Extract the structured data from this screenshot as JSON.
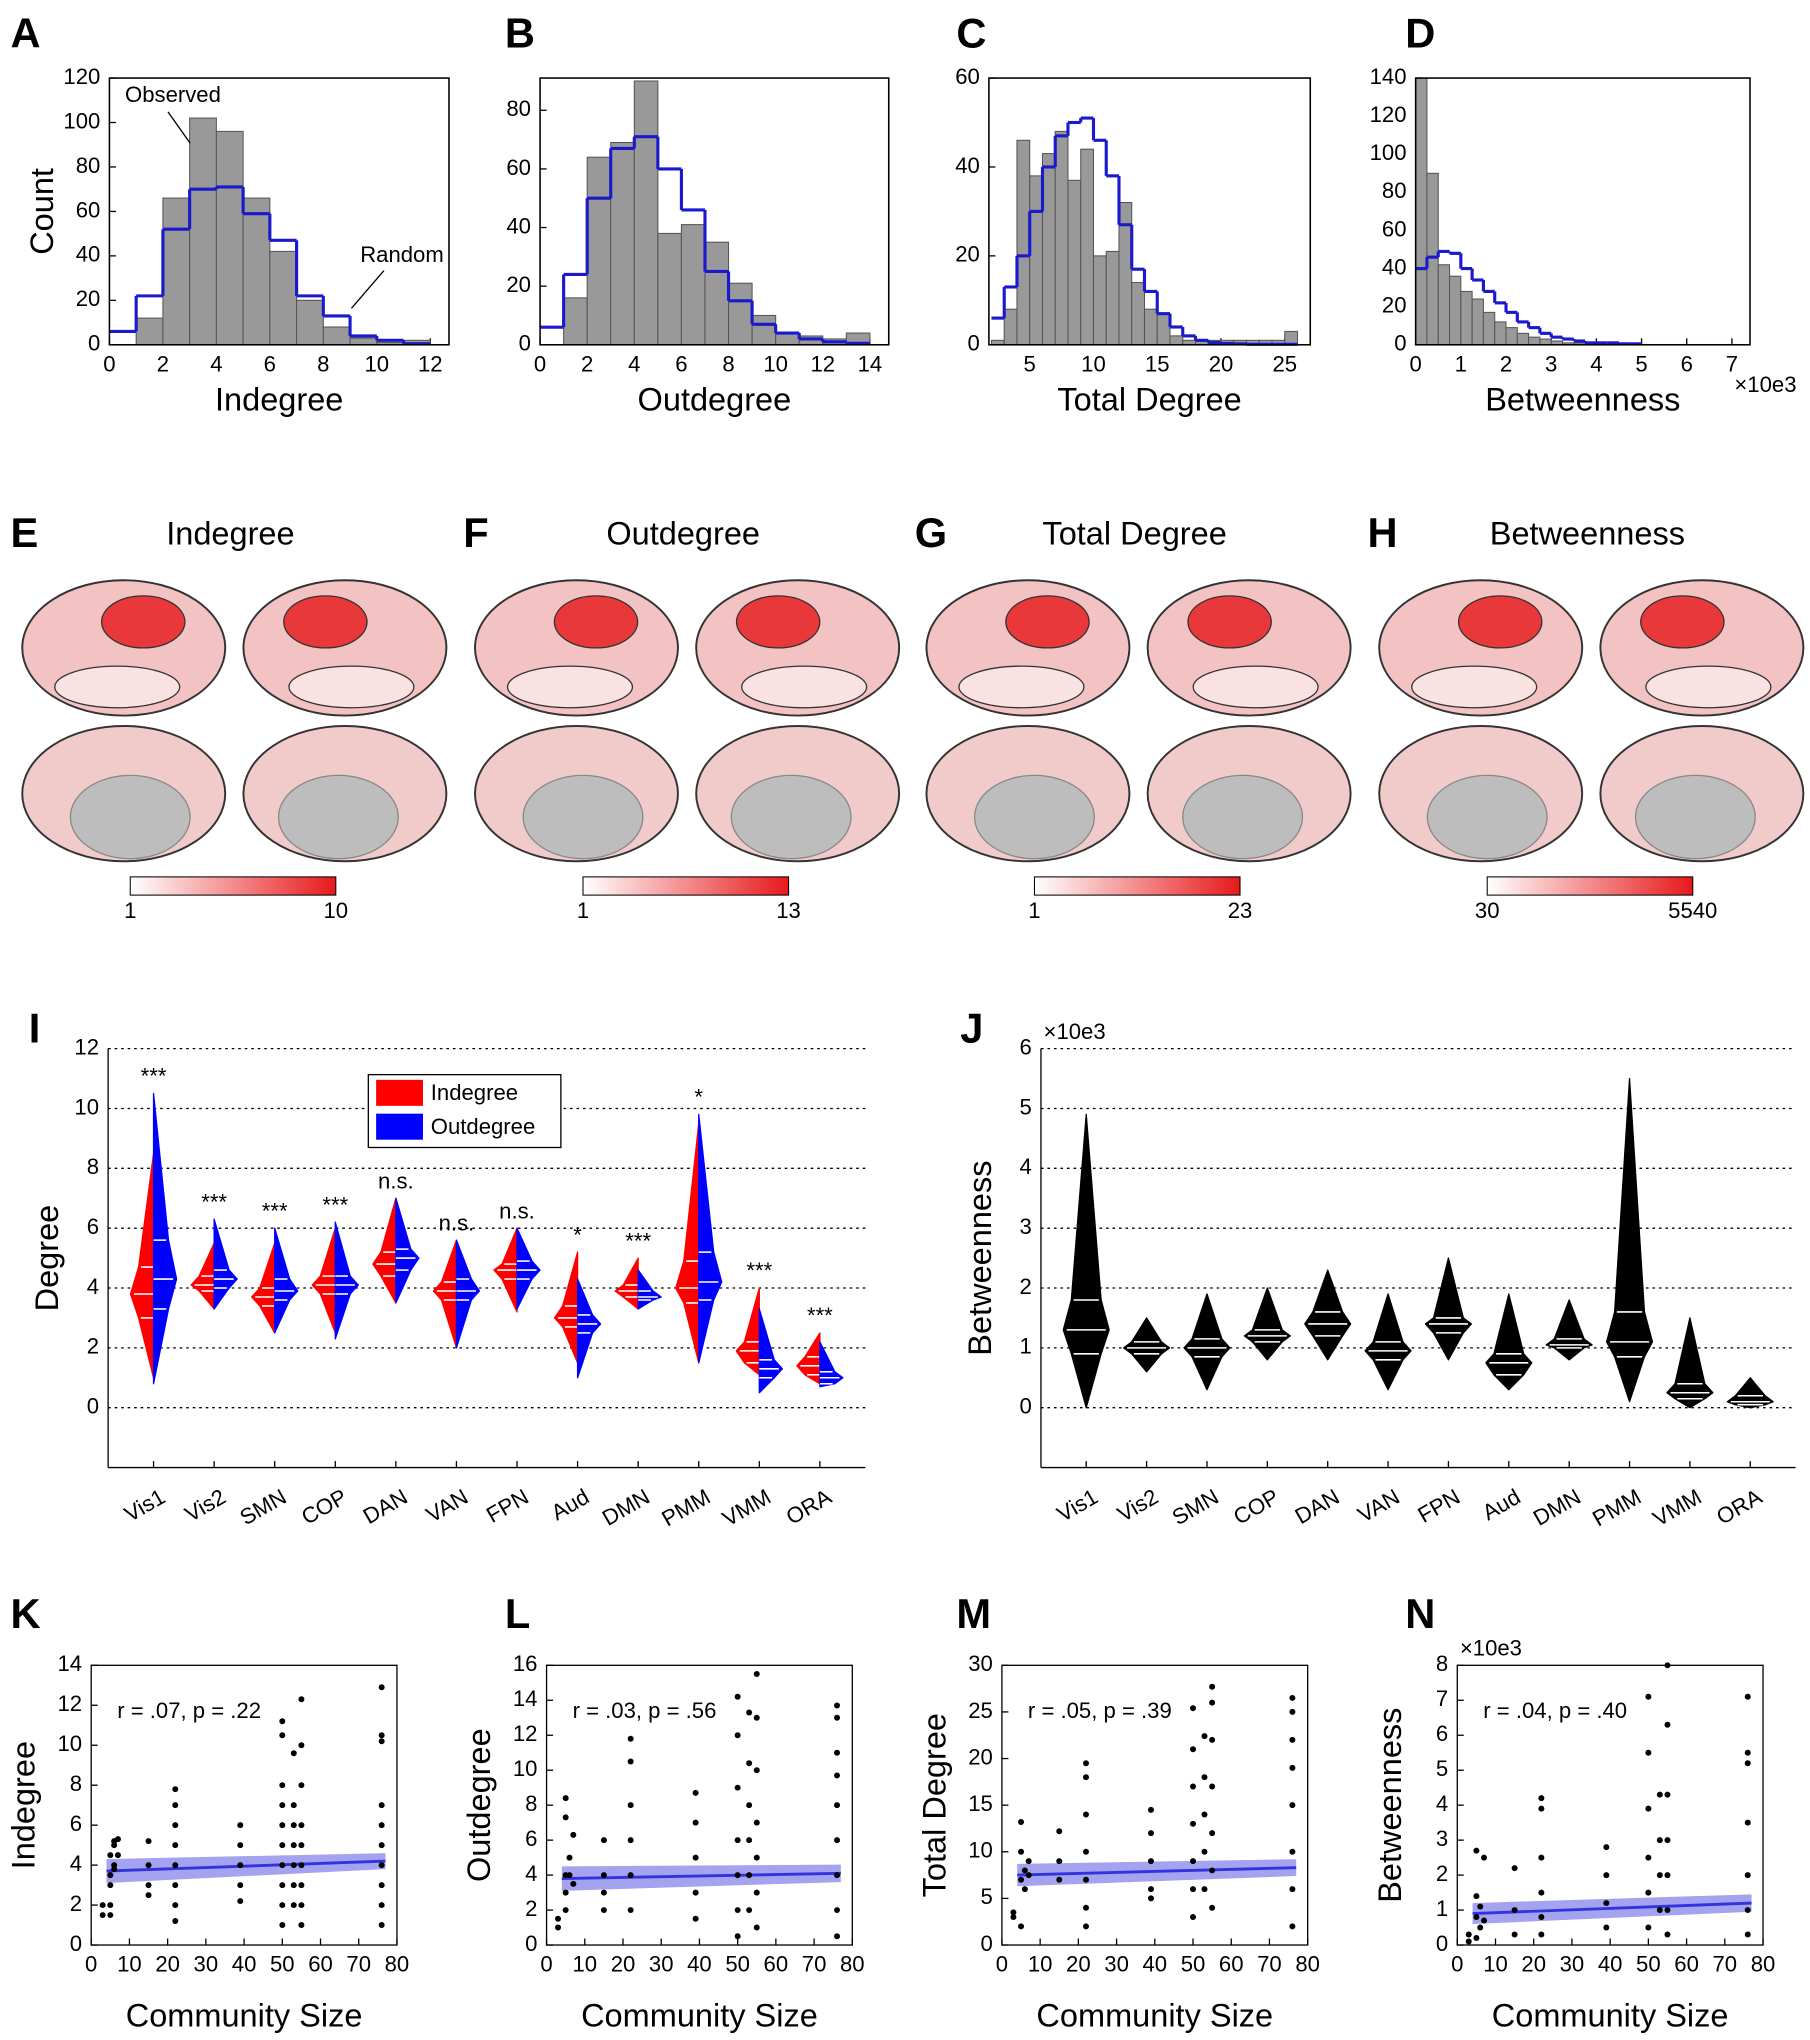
{
  "chart_data": [
    {
      "type": "histogram",
      "panel": "A",
      "xlabel": "Indegree",
      "ylabel": "Count",
      "annotations": [
        "Observed",
        "Random"
      ],
      "bins": [
        0,
        1,
        2,
        3,
        4,
        5,
        6,
        7,
        8,
        9,
        10,
        11,
        12
      ],
      "values": [
        0,
        12,
        66,
        102,
        96,
        66,
        42,
        20,
        8,
        3,
        1,
        2
      ],
      "random_values": [
        6,
        22,
        52,
        70,
        71,
        59,
        47,
        22,
        13,
        4,
        2,
        0.5
      ],
      "color": "#999999",
      "random_color": "#1a1acc",
      "xlim": [
        0,
        12.7
      ],
      "xticks": [
        0,
        2,
        4,
        6,
        8,
        10,
        12
      ],
      "ylim": [
        0,
        120
      ],
      "yticks": [
        0,
        20,
        40,
        60,
        80,
        100,
        120
      ]
    },
    {
      "type": "histogram",
      "panel": "B",
      "xlabel": "Outdegree",
      "bins": [
        0,
        1,
        2,
        3,
        4,
        5,
        6,
        7,
        8,
        9,
        10,
        11,
        12,
        13,
        14
      ],
      "values": [
        0,
        16,
        64,
        69,
        90,
        38,
        41,
        35,
        21,
        10,
        4,
        3,
        2,
        4
      ],
      "random_values": [
        6,
        24,
        50,
        67,
        71,
        60,
        46,
        25,
        15,
        7,
        4,
        2,
        1,
        0.5
      ],
      "color": "#999999",
      "random_color": "#1a1acc",
      "xlim": [
        0,
        14.8
      ],
      "xticks": [
        0,
        2,
        4,
        6,
        8,
        10,
        12,
        14
      ],
      "ylim": [
        0,
        91
      ],
      "yticks": [
        0,
        20,
        40,
        60,
        80
      ]
    },
    {
      "type": "histogram",
      "panel": "C",
      "xlabel": "Total Degree",
      "bins": [
        2,
        3,
        4,
        5,
        6,
        7,
        8,
        9,
        10,
        11,
        12,
        13,
        14,
        15,
        16,
        17,
        18,
        19,
        20,
        21,
        22,
        23,
        24,
        25,
        26
      ],
      "values": [
        1,
        8,
        46,
        38,
        43,
        48,
        37,
        44,
        20,
        21,
        32,
        14,
        8,
        7,
        2,
        1,
        1,
        1,
        1,
        1,
        1,
        1,
        1,
        3
      ],
      "random_values": [
        6,
        13,
        20,
        30,
        40,
        47,
        50,
        51,
        46,
        38,
        27,
        17,
        12,
        7,
        4,
        2,
        1,
        0.5,
        0.3,
        0.2,
        0.1,
        0.1,
        0.1,
        0.1
      ],
      "color": "#999999",
      "random_color": "#1a1acc",
      "xlim": [
        1.8,
        27
      ],
      "xticks": [
        5,
        10,
        15,
        20,
        25
      ],
      "ylim": [
        0,
        60
      ],
      "yticks": [
        0,
        20,
        40,
        60
      ]
    },
    {
      "type": "histogram",
      "panel": "D",
      "xlabel": "Betweenness",
      "multiplier": "×10e3",
      "bins": [
        0,
        0.25,
        0.5,
        0.75,
        1,
        1.25,
        1.5,
        1.75,
        2,
        2.25,
        2.5,
        2.75,
        3,
        3.25,
        3.5,
        3.75,
        4,
        4.25,
        4.5,
        4.75,
        5
      ],
      "values": [
        140,
        90,
        42,
        36,
        28,
        24,
        17,
        12,
        9,
        6,
        4,
        3,
        2,
        1,
        1,
        1,
        0.5,
        0.5,
        0.3,
        0.3
      ],
      "random_values": [
        40,
        46,
        49,
        48,
        40,
        34,
        28,
        22,
        17,
        12,
        9,
        6,
        4,
        3,
        2,
        1,
        1,
        1,
        0.5,
        0.5
      ],
      "color": "#999999",
      "random_color": "#1a1acc",
      "xlim": [
        0,
        7.4
      ],
      "xticks": [
        0,
        1,
        2,
        3,
        4,
        5,
        6,
        7
      ],
      "ylim": [
        0,
        140
      ],
      "yticks": [
        0,
        20,
        40,
        60,
        80,
        100,
        120,
        140
      ]
    },
    {
      "type": "violin",
      "panel": "I",
      "ylabel": "Degree",
      "categories": [
        "Vis1",
        "Vis2",
        "SMN",
        "COP",
        "DAN",
        "VAN",
        "FPN",
        "Aud",
        "DMN",
        "PMM",
        "VMM",
        "ORA"
      ],
      "significance": [
        "***",
        "***",
        "***",
        "***",
        "n.s.",
        "n.s.",
        "n.s.",
        "*",
        "***",
        "*",
        "***",
        "***"
      ],
      "ylim": [
        -2,
        12
      ],
      "yticks": [
        0,
        2,
        4,
        6,
        8,
        10,
        12
      ],
      "grid": true,
      "series": [
        {
          "name": "Indegree",
          "color": "#ff0000",
          "min": [
            1,
            3.3,
            2.5,
            2.5,
            3.5,
            2,
            3.2,
            1.5,
            3.3,
            1.5,
            1.1,
            0.8
          ],
          "q1": [
            3,
            3.9,
            3.4,
            3.8,
            4.4,
            3.6,
            4.3,
            2.7,
            3.7,
            3.5,
            1.5,
            1.1
          ],
          "median": [
            3.8,
            4.1,
            3.7,
            4.1,
            4.8,
            3.9,
            4.6,
            3,
            3.9,
            4,
            1.9,
            1.4
          ],
          "q3": [
            4.7,
            4.4,
            4,
            4.4,
            5.2,
            4.2,
            4.8,
            3.4,
            4.1,
            4.9,
            2.2,
            1.7
          ],
          "max": [
            8.5,
            5.5,
            5.5,
            6,
            7,
            5.6,
            6,
            5.2,
            5,
            9.5,
            4,
            2.5
          ]
        },
        {
          "name": "Outdegree",
          "color": "#0000ff",
          "min": [
            0.8,
            3.3,
            2.5,
            2.3,
            3.5,
            2,
            3.3,
            1,
            3.3,
            1.5,
            0.5,
            0.7
          ],
          "q1": [
            3.3,
            4,
            3.6,
            3.8,
            4.6,
            3.6,
            4.3,
            2.5,
            3.6,
            3.6,
            1,
            0.8
          ],
          "median": [
            4.3,
            4.3,
            3.9,
            4.1,
            5,
            3.9,
            4.6,
            2.8,
            3.7,
            4.2,
            1.3,
            1
          ],
          "q3": [
            5.6,
            4.6,
            4.3,
            4.4,
            5.3,
            4.3,
            4.9,
            3.1,
            3.9,
            5.2,
            1.6,
            1.2
          ],
          "max": [
            10.5,
            6.3,
            6,
            6.2,
            7,
            5.6,
            6,
            4.3,
            4.6,
            9.8,
            3.3,
            2.2
          ]
        }
      ]
    },
    {
      "type": "violin",
      "panel": "J",
      "ylabel": "Betweenness",
      "multiplier": "×10e3",
      "categories": [
        "Vis1",
        "Vis2",
        "SMN",
        "COP",
        "DAN",
        "VAN",
        "FPN",
        "Aud",
        "DMN",
        "PMM",
        "VMM",
        "ORA"
      ],
      "ylim": [
        -1,
        6
      ],
      "yticks": [
        0,
        1,
        2,
        3,
        4,
        5,
        6
      ],
      "grid": true,
      "series": [
        {
          "color": "#000000",
          "min": [
            0,
            0.6,
            0.3,
            0.8,
            0.8,
            0.3,
            0.8,
            0.3,
            0.8,
            0.1,
            0,
            0
          ],
          "q1": [
            0.9,
            0.9,
            0.85,
            1.1,
            1.2,
            0.8,
            1.25,
            0.55,
            1,
            0.85,
            0.15,
            0.05
          ],
          "median": [
            1.3,
            1,
            1,
            1.2,
            1.4,
            0.95,
            1.4,
            0.75,
            1.05,
            1.1,
            0.25,
            0.1
          ],
          "q3": [
            1.8,
            1.1,
            1.15,
            1.3,
            1.6,
            1.1,
            1.5,
            0.9,
            1.15,
            1.6,
            0.4,
            0.2
          ],
          "max": [
            4.9,
            1.5,
            1.9,
            2,
            2.3,
            1.9,
            2.5,
            1.9,
            1.8,
            5.5,
            1.5,
            0.5
          ]
        }
      ]
    },
    {
      "type": "scatter",
      "panel": "K",
      "xlabel": "Community Size",
      "ylabel": "Indegree",
      "annotation": "r = .07, p = .22",
      "color": "#000000",
      "fit_color": "#3333dd",
      "x": [
        3,
        3,
        5,
        5,
        5,
        5,
        5,
        6,
        6,
        6,
        6,
        7,
        7,
        15,
        15,
        15,
        15,
        22,
        22,
        22,
        22,
        22,
        22,
        22,
        22,
        39,
        39,
        39,
        39,
        39,
        50,
        50,
        50,
        50,
        50,
        50,
        50,
        50,
        50,
        50,
        53,
        53,
        53,
        53,
        53,
        53,
        53,
        55,
        55,
        55,
        55,
        55,
        55,
        55,
        55,
        55,
        76,
        76,
        76,
        76,
        76,
        76,
        76,
        76,
        76,
        76
      ],
      "values": [
        2,
        1.5,
        3,
        4.5,
        2,
        1.5,
        3.5,
        5,
        4,
        3.8,
        5.2,
        5.3,
        4.5,
        5.2,
        4,
        3,
        2.5,
        7.8,
        7,
        6,
        5,
        4,
        3,
        2,
        1.2,
        6,
        5,
        4,
        3,
        2.2,
        11.2,
        10.5,
        8,
        7,
        6,
        5,
        4,
        3,
        2,
        1,
        9.6,
        7,
        6,
        5,
        4,
        3,
        2,
        12.3,
        10,
        8,
        6,
        5,
        4,
        3,
        2,
        1,
        12.9,
        10.5,
        10.2,
        7,
        6,
        5,
        4,
        3,
        2,
        1
      ],
      "fit_x": [
        4,
        77
      ],
      "fit_y": [
        3.7,
        4.2
      ],
      "fit_ci": [
        0.6,
        0.4
      ],
      "xlim": [
        0,
        80
      ],
      "xticks": [
        0,
        10,
        20,
        30,
        40,
        50,
        60,
        70,
        80
      ],
      "ylim": [
        0,
        14
      ],
      "yticks": [
        0,
        2,
        4,
        6,
        8,
        10,
        12,
        14
      ]
    },
    {
      "type": "scatter",
      "panel": "L",
      "xlabel": "Community Size",
      "ylabel": "Outdegree",
      "annotation": "r = .03, p = .56",
      "color": "#000000",
      "fit_color": "#3333dd",
      "x": [
        3,
        3,
        5,
        5,
        5,
        5,
        5,
        6,
        6,
        7,
        7,
        15,
        15,
        15,
        15,
        22,
        22,
        22,
        22,
        22,
        22,
        39,
        39,
        39,
        39,
        39,
        50,
        50,
        50,
        50,
        50,
        50,
        50,
        53,
        53,
        53,
        53,
        53,
        53,
        55,
        55,
        55,
        55,
        55,
        55,
        55,
        76,
        76,
        76,
        76,
        76,
        76,
        76,
        76,
        76
      ],
      "values": [
        1.5,
        1,
        8.4,
        7.3,
        4,
        3,
        2,
        5,
        4,
        6.3,
        3.5,
        6,
        4,
        3,
        2,
        11.8,
        10.5,
        8,
        6,
        4,
        2,
        8.7,
        7,
        5,
        3,
        1.5,
        14.2,
        12,
        9,
        6,
        4,
        2,
        0.5,
        13.3,
        10.4,
        8,
        6,
        4,
        2,
        15.5,
        13,
        10,
        7,
        5,
        3,
        1,
        13.7,
        13,
        11,
        9.7,
        8,
        6,
        4,
        2,
        0.5
      ],
      "fit_x": [
        4,
        77
      ],
      "fit_y": [
        3.8,
        4.1
      ],
      "fit_ci": [
        0.7,
        0.5
      ],
      "xlim": [
        0,
        80
      ],
      "xticks": [
        0,
        10,
        20,
        30,
        40,
        50,
        60,
        70,
        80
      ],
      "ylim": [
        0,
        16
      ],
      "yticks": [
        0,
        2,
        4,
        6,
        8,
        10,
        12,
        14,
        16
      ]
    },
    {
      "type": "scatter",
      "panel": "M",
      "xlabel": "Community Size",
      "ylabel": "Total Degree",
      "annotation": "r = .05, p = .39",
      "color": "#000000",
      "fit_color": "#3333dd",
      "x": [
        3,
        3,
        5,
        5,
        5,
        5,
        6,
        6,
        7,
        7,
        15,
        15,
        15,
        22,
        22,
        22,
        22,
        22,
        22,
        22,
        39,
        39,
        39,
        39,
        39,
        50,
        50,
        50,
        50,
        50,
        50,
        50,
        53,
        53,
        53,
        53,
        53,
        55,
        55,
        55,
        55,
        55,
        55,
        55,
        76,
        76,
        76,
        76,
        76,
        76,
        76,
        76
      ],
      "values": [
        3.5,
        3,
        13.2,
        10,
        7,
        2,
        8,
        6,
        9,
        7.5,
        12.2,
        9,
        7,
        19.5,
        18,
        14,
        10,
        7,
        4,
        2,
        14.5,
        12,
        9,
        6,
        5,
        25.4,
        21,
        17,
        13,
        9,
        6,
        3,
        22.4,
        18,
        14,
        10,
        6,
        27.7,
        26,
        22,
        17,
        12,
        8,
        4,
        26.5,
        25,
        22,
        19,
        15,
        10,
        6,
        2
      ],
      "fit_x": [
        4,
        77
      ],
      "fit_y": [
        7.5,
        8.3
      ],
      "fit_ci": [
        1.2,
        0.9
      ],
      "xlim": [
        0,
        80
      ],
      "xticks": [
        0,
        10,
        20,
        30,
        40,
        50,
        60,
        70,
        80
      ],
      "ylim": [
        0,
        30
      ],
      "yticks": [
        0,
        5,
        10,
        15,
        20,
        25,
        30
      ]
    },
    {
      "type": "scatter",
      "panel": "N",
      "xlabel": "Community Size",
      "ylabel": "Betweenness",
      "annotation": "r = .04, p = .40",
      "multiplier": "×10e3",
      "color": "#000000",
      "fit_color": "#3333dd",
      "x": [
        3,
        3,
        5,
        5,
        5,
        5,
        6,
        6,
        7,
        7,
        15,
        15,
        15,
        22,
        22,
        22,
        22,
        22,
        22,
        39,
        39,
        39,
        39,
        50,
        50,
        50,
        50,
        50,
        50,
        53,
        53,
        53,
        53,
        55,
        55,
        55,
        55,
        55,
        55,
        55,
        76,
        76,
        76,
        76,
        76,
        76,
        76
      ],
      "values": [
        0.3,
        0.1,
        2.7,
        1.4,
        0.8,
        0.2,
        1.1,
        0.5,
        2.5,
        0.7,
        2.2,
        1,
        0.3,
        4.2,
        3.9,
        2.5,
        1.5,
        0.8,
        0.3,
        2.8,
        2,
        1.2,
        0.5,
        7.1,
        5.5,
        3.9,
        2.5,
        1.5,
        0.5,
        4.3,
        3,
        2,
        1,
        8,
        6.3,
        4.3,
        3,
        2,
        1,
        0.3,
        7.1,
        5.5,
        5.2,
        3.5,
        2,
        1,
        0.3
      ],
      "fit_x": [
        4,
        77
      ],
      "fit_y": [
        0.9,
        1.2
      ],
      "fit_ci": [
        0.3,
        0.25
      ],
      "xlim": [
        0,
        80
      ],
      "xticks": [
        0,
        10,
        20,
        30,
        40,
        50,
        60,
        70,
        80
      ],
      "ylim": [
        0,
        8
      ],
      "yticks": [
        0,
        1,
        2,
        3,
        4,
        5,
        6,
        7,
        8
      ]
    }
  ],
  "brain_maps": [
    {
      "panel": "E",
      "title": "Indegree",
      "colorbar": [
        1,
        10
      ]
    },
    {
      "panel": "F",
      "title": "Outdegree",
      "colorbar": [
        1,
        13
      ]
    },
    {
      "panel": "G",
      "title": "Total Degree",
      "colorbar": [
        1,
        23
      ]
    },
    {
      "panel": "H",
      "title": "Betweenness",
      "colorbar": [
        30,
        5540
      ]
    }
  ],
  "colormap": [
    "#ffffff",
    "#e8191b"
  ]
}
